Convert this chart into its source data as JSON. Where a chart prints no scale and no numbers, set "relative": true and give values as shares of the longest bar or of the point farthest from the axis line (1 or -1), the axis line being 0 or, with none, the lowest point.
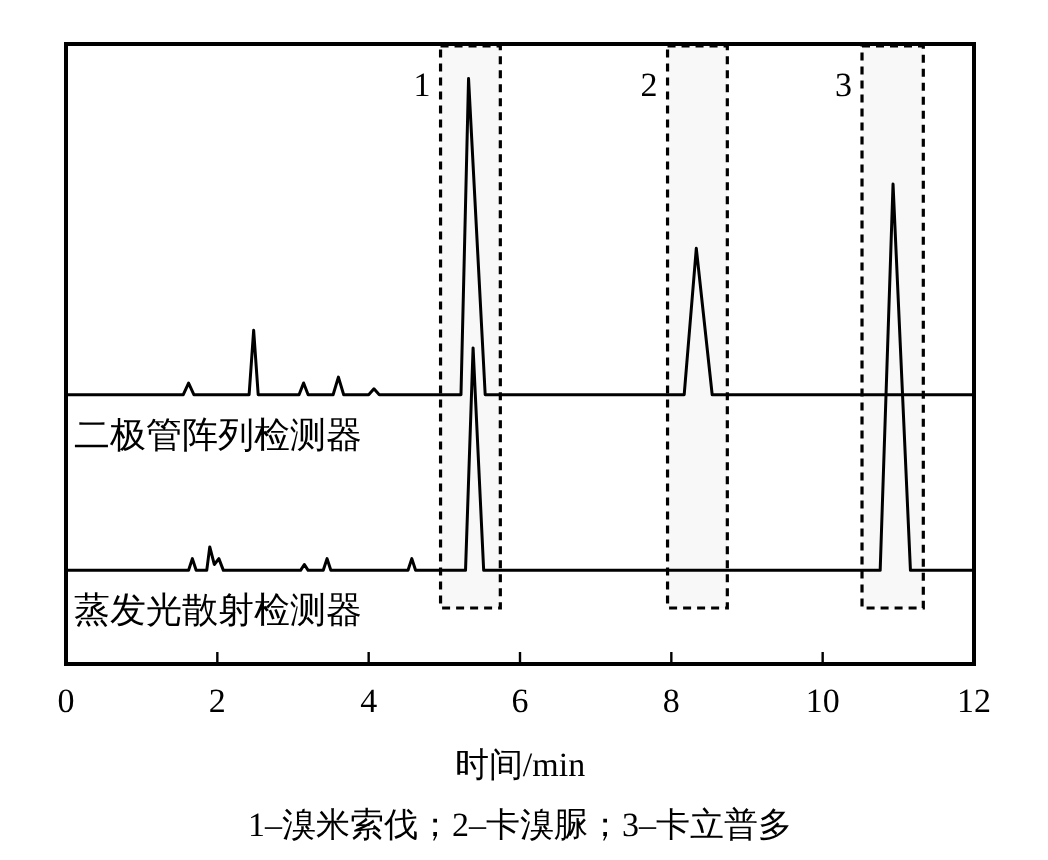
{
  "chart_data": {
    "type": "line",
    "relative": true,
    "xlabel": "时间/min",
    "xlim": [
      0,
      12
    ],
    "xticks": [
      0,
      2,
      4,
      6,
      8,
      10,
      12
    ],
    "grid": false,
    "legend": false,
    "marker": "none",
    "line_style": "solid",
    "series": [
      {
        "name": "二极管阵列检测器",
        "color": "#000000",
        "x": [
          0,
          1.55,
          1.62,
          1.69,
          2.42,
          2.48,
          2.54,
          3.08,
          3.14,
          3.2,
          3.53,
          3.6,
          3.67,
          4.0,
          4.07,
          4.14,
          5.22,
          5.32,
          5.54,
          8.17,
          8.33,
          8.54,
          12
        ],
        "values": [
          0.46,
          0.46,
          0.48,
          0.46,
          0.46,
          0.57,
          0.46,
          0.46,
          0.48,
          0.46,
          0.46,
          0.49,
          0.46,
          0.46,
          0.47,
          0.46,
          0.46,
          1.0,
          0.46,
          0.46,
          0.71,
          0.46,
          0.46
        ]
      },
      {
        "name": "蒸发光散射检测器",
        "color": "#000000",
        "x": [
          0,
          1.62,
          1.67,
          1.72,
          1.86,
          1.9,
          1.96,
          2.02,
          2.08,
          3.1,
          3.15,
          3.2,
          3.4,
          3.45,
          3.5,
          4.52,
          4.57,
          4.62,
          5.28,
          5.38,
          5.52,
          10.76,
          10.93,
          11.16,
          12
        ],
        "values": [
          0.16,
          0.16,
          0.18,
          0.16,
          0.16,
          0.2,
          0.17,
          0.18,
          0.16,
          0.16,
          0.17,
          0.16,
          0.16,
          0.18,
          0.16,
          0.16,
          0.18,
          0.16,
          0.16,
          0.54,
          0.16,
          0.16,
          0.82,
          0.16,
          0.16
        ]
      }
    ],
    "bands": [
      {
        "axis": "x",
        "from": 4.95,
        "to": 5.74,
        "label": "1",
        "color": "#f8f8f8"
      },
      {
        "axis": "x",
        "from": 7.95,
        "to": 8.74,
        "label": "2",
        "color": "#f8f8f8"
      },
      {
        "axis": "x",
        "from": 10.52,
        "to": 11.33,
        "label": "3",
        "color": "#f8f8f8"
      }
    ],
    "annotations": [
      "1–溴米索伐；2–卡溴脲；3–卡立普多"
    ]
  }
}
